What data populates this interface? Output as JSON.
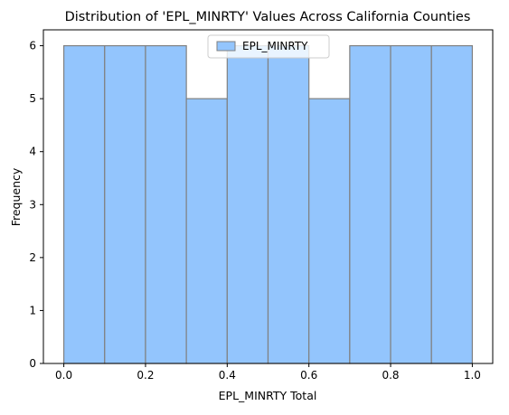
{
  "chart_data": {
    "type": "histogram",
    "title": "Distribution of 'EPL_MINRTY' Values Across California Counties",
    "xlabel": "EPL_MINRTY Total",
    "ylabel": "Frequency",
    "xlim": [
      -0.05,
      1.05
    ],
    "ylim": [
      0,
      6.3
    ],
    "xticks": [
      0.0,
      0.2,
      0.4,
      0.6,
      0.8,
      1.0
    ],
    "xtick_labels": [
      "0.0",
      "0.2",
      "0.4",
      "0.6",
      "0.8",
      "1.0"
    ],
    "yticks": [
      0,
      1,
      2,
      3,
      4,
      5,
      6
    ],
    "ytick_labels": [
      "0",
      "1",
      "2",
      "3",
      "4",
      "5",
      "6"
    ],
    "grid": false,
    "legend_position": "top-center",
    "series": [
      {
        "name": "EPL_MINRTY",
        "color": "#93c5fd",
        "edge_color": "#808080",
        "bins": [
          {
            "x0": 0.0,
            "x1": 0.1,
            "value": 6
          },
          {
            "x0": 0.1,
            "x1": 0.2,
            "value": 6
          },
          {
            "x0": 0.2,
            "x1": 0.3,
            "value": 6
          },
          {
            "x0": 0.3,
            "x1": 0.4,
            "value": 5
          },
          {
            "x0": 0.4,
            "x1": 0.5,
            "value": 6
          },
          {
            "x0": 0.5,
            "x1": 0.6,
            "value": 6
          },
          {
            "x0": 0.6,
            "x1": 0.7,
            "value": 5
          },
          {
            "x0": 0.7,
            "x1": 0.8,
            "value": 6
          },
          {
            "x0": 0.8,
            "x1": 0.9,
            "value": 6
          },
          {
            "x0": 0.9,
            "x1": 1.0,
            "value": 6
          }
        ]
      }
    ]
  }
}
